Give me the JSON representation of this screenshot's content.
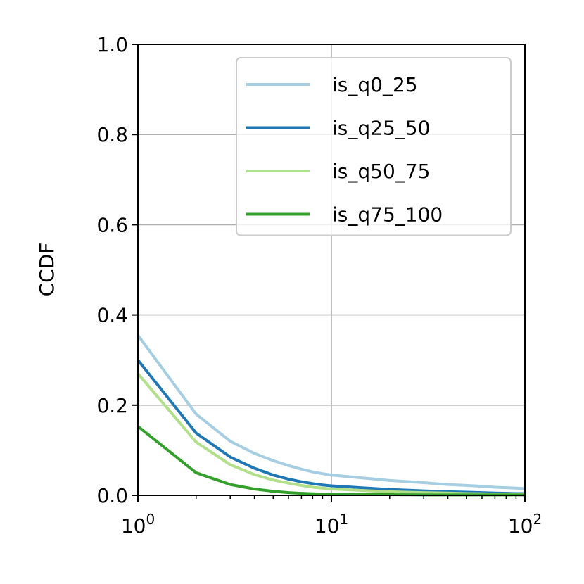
{
  "chart_data": {
    "type": "line",
    "xlabel": "",
    "ylabel": "CCDF",
    "xscale": "log",
    "xlim": [
      1,
      100
    ],
    "ylim": [
      0,
      1.0
    ],
    "grid": true,
    "legend_position": "top-right",
    "x_ticks": [
      {
        "value": 1,
        "base": "10",
        "exp": "0"
      },
      {
        "value": 10,
        "base": "10",
        "exp": "1"
      },
      {
        "value": 100,
        "base": "10",
        "exp": "2"
      }
    ],
    "y_ticks": [
      {
        "value": 0.0,
        "label": "0.0"
      },
      {
        "value": 0.2,
        "label": "0.2"
      },
      {
        "value": 0.4,
        "label": "0.4"
      },
      {
        "value": 0.6,
        "label": "0.6"
      },
      {
        "value": 0.8,
        "label": "0.8"
      },
      {
        "value": 1.0,
        "label": "1.0"
      }
    ],
    "x": [
      1,
      2,
      3,
      4,
      5,
      6,
      7,
      8,
      9,
      10,
      20,
      30,
      40,
      50,
      60,
      70,
      80,
      90,
      100
    ],
    "series": [
      {
        "name": "is_q0_25",
        "color": "#a6cee3",
        "values": [
          0.355,
          0.18,
          0.12,
          0.093,
          0.077,
          0.066,
          0.058,
          0.052,
          0.048,
          0.045,
          0.033,
          0.028,
          0.024,
          0.022,
          0.02,
          0.018,
          0.017,
          0.016,
          0.015
        ]
      },
      {
        "name": "is_q25_50",
        "color": "#1f78b4",
        "values": [
          0.3,
          0.138,
          0.085,
          0.06,
          0.045,
          0.036,
          0.03,
          0.026,
          0.023,
          0.021,
          0.013,
          0.01,
          0.008,
          0.007,
          0.006,
          0.005,
          0.0045,
          0.004,
          0.004
        ]
      },
      {
        "name": "is_q50_75",
        "color": "#b2df8a",
        "values": [
          0.27,
          0.118,
          0.068,
          0.046,
          0.034,
          0.027,
          0.022,
          0.018,
          0.016,
          0.014,
          0.008,
          0.006,
          0.005,
          0.004,
          0.0035,
          0.003,
          0.003,
          0.0025,
          0.0025
        ]
      },
      {
        "name": "is_q75_100",
        "color": "#33a02c",
        "values": [
          0.153,
          0.05,
          0.024,
          0.014,
          0.009,
          0.006,
          0.0045,
          0.0035,
          0.003,
          0.0025,
          0.0015,
          0.001,
          0.001,
          0.001,
          0.001,
          0.001,
          0.001,
          0.001,
          0.001
        ]
      }
    ]
  }
}
